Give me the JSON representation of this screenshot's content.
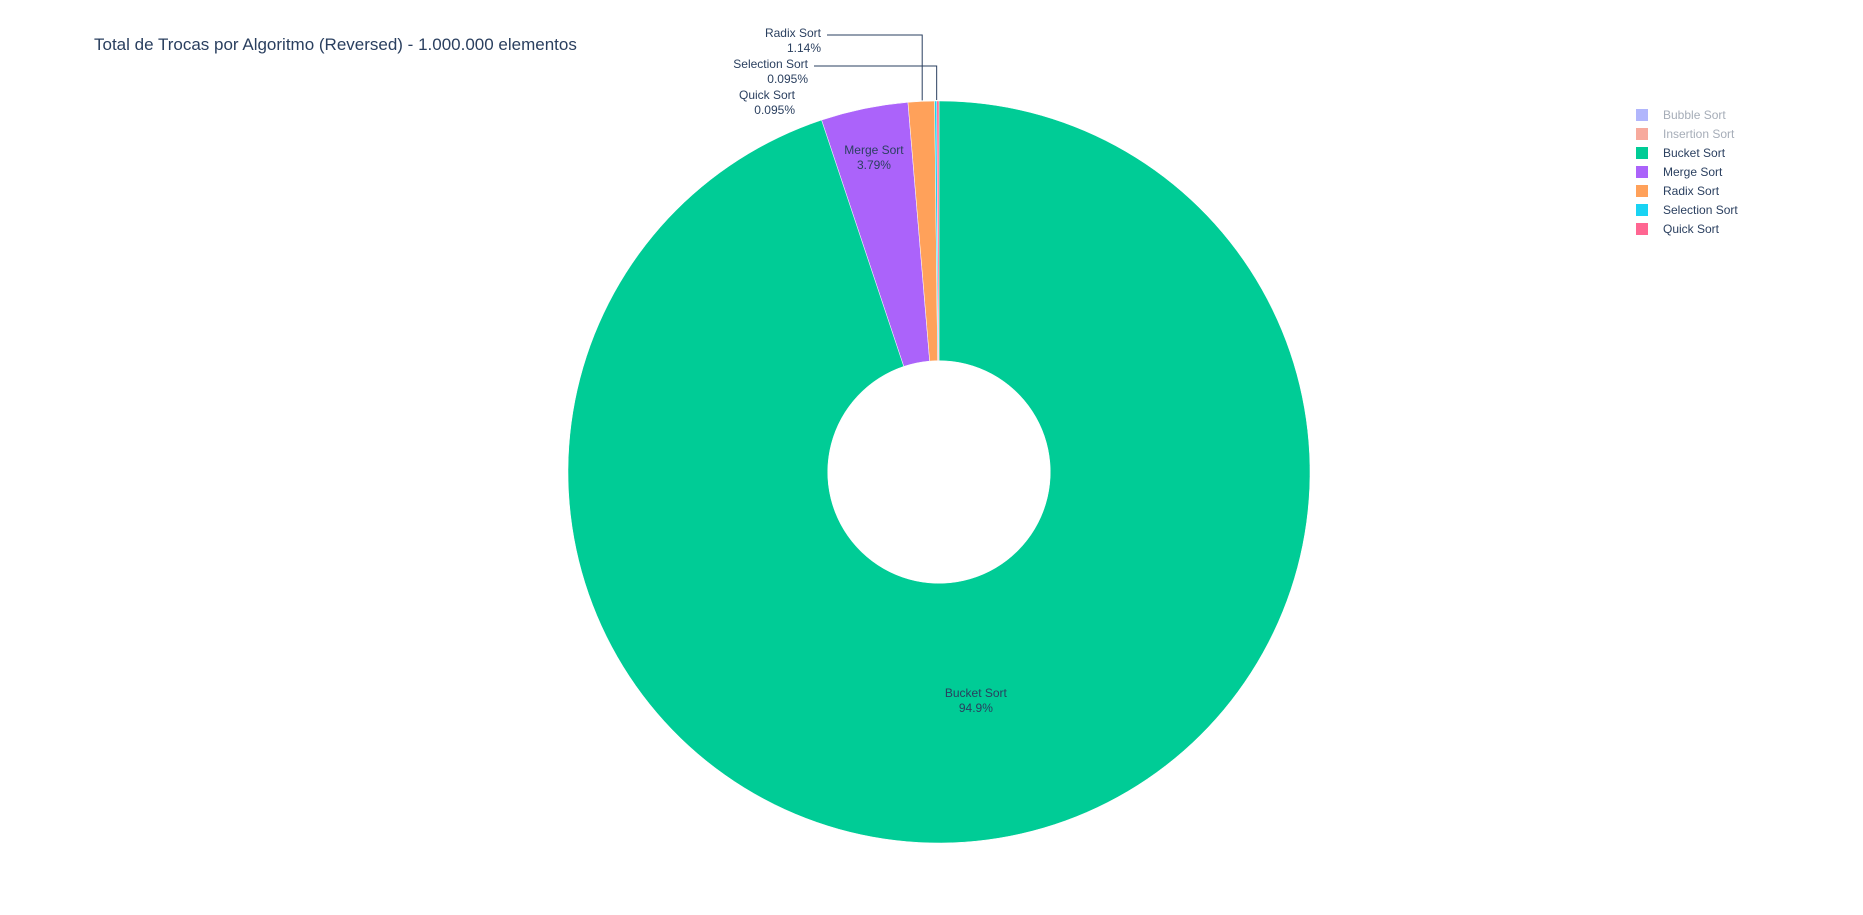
{
  "chart_data": {
    "type": "pie",
    "hole": 0.3,
    "title": "Total de Trocas por Algoritmo (Reversed) - 1.000.000 elementos",
    "slices": [
      {
        "label": "Bucket Sort",
        "percent_text": "94.9%",
        "value": 94.876,
        "color": "#00cc96",
        "show": true
      },
      {
        "label": "Merge Sort",
        "percent_text": "3.79%",
        "value": 3.79,
        "color": "#ab63fa",
        "show": true
      },
      {
        "label": "Radix Sort",
        "percent_text": "1.14%",
        "value": 1.144,
        "color": "#ffa15a",
        "show": true
      },
      {
        "label": "Selection Sort",
        "percent_text": "0.095%",
        "value": 0.095,
        "color": "#19d3f3",
        "show": true
      },
      {
        "label": "Quick Sort",
        "percent_text": "0.095%",
        "value": 0.095,
        "color": "#ff6692",
        "show": true
      },
      {
        "label": "Bubble Sort",
        "percent_text": "",
        "value": 0,
        "color": "#636efa",
        "show": false
      },
      {
        "label": "Insertion Sort",
        "percent_text": "",
        "value": 0,
        "color": "#ef553b",
        "show": false
      }
    ],
    "legend": [
      {
        "label": "Bubble Sort",
        "color": "#636efa",
        "hidden": true
      },
      {
        "label": "Insertion Sort",
        "color": "#ef553b",
        "hidden": true
      },
      {
        "label": "Bucket Sort",
        "color": "#00cc96",
        "hidden": false
      },
      {
        "label": "Merge Sort",
        "color": "#ab63fa",
        "hidden": false
      },
      {
        "label": "Radix Sort",
        "color": "#ffa15a",
        "hidden": false
      },
      {
        "label": "Selection Sort",
        "color": "#19d3f3",
        "hidden": false
      },
      {
        "label": "Quick Sort",
        "color": "#ff6692",
        "hidden": false
      }
    ],
    "legend_position": "top-right"
  }
}
